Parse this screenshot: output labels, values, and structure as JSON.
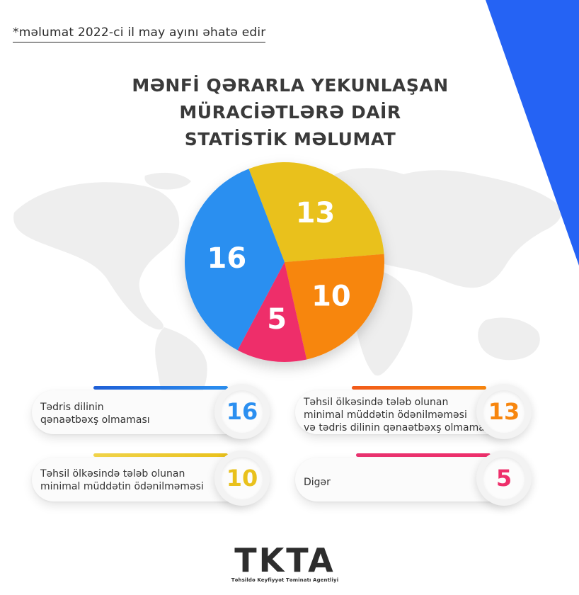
{
  "note": "*məlumat 2022-ci il may ayını əhatə edir",
  "title_lines": [
    "MƏNFİ QƏRARLA YEKUNLAŞAN",
    "MÜRACİƏTLƏRƏ DAİR",
    "STATİSTİK MƏLUMAT"
  ],
  "colors": {
    "blue": "#2b8ff0",
    "yellow": "#e9c11c",
    "orange": "#f7860f",
    "pink": "#ee2f6b",
    "corner_blue": "#2563f4"
  },
  "chart_data": {
    "type": "pie",
    "title": "MƏNFİ QƏRARLA YEKUNLAŞAN MÜRACİƏTLƏRƏ DAİR STATİSTİK MƏLUMAT",
    "slices": [
      {
        "label": "Təhsil ölkəsində tələb olunan minimal müddətin ödənilməməsi və tədris dilinin qənaətbəxş olmaması",
        "value": 13,
        "color": "#e9c11c"
      },
      {
        "label": "Təhsil ölkəsində tələb olunan minimal müddətin ödənilməməsi",
        "value": 10,
        "color": "#f7860f"
      },
      {
        "label": "Digər",
        "value": 5,
        "color": "#ee2f6b"
      },
      {
        "label": "Tədris dilinin qənaətbəxş olmaması",
        "value": 16,
        "color": "#2b8ff0"
      }
    ]
  },
  "legend": [
    {
      "lines": [
        "Tədris dilinin",
        "qənaətbəxş olmaması"
      ],
      "value": "16",
      "color": "#2b8ff0",
      "color2": "#1f5fd6"
    },
    {
      "lines": [
        "Təhsil ölkəsində tələb olunan",
        "minimal müddətin ödənilməməsi",
        "və tədris dilinin qənaətbəxş olmaması"
      ],
      "value": "13",
      "color": "#f7860f",
      "color2": "#f25a1a"
    },
    {
      "lines": [
        "Təhsil ölkəsində tələb olunan",
        "minimal müddətin ödənilməməsi"
      ],
      "value": "10",
      "color": "#e9c11c",
      "color2": "#f0d34a"
    },
    {
      "lines": [
        "Digər"
      ],
      "value": "5",
      "color": "#ee2f6b",
      "color2": "#e8326f"
    }
  ],
  "logo": {
    "text": "TKTA",
    "subtitle": "Təhsildə Keyfiyyət Təminatı Agentliyi"
  }
}
